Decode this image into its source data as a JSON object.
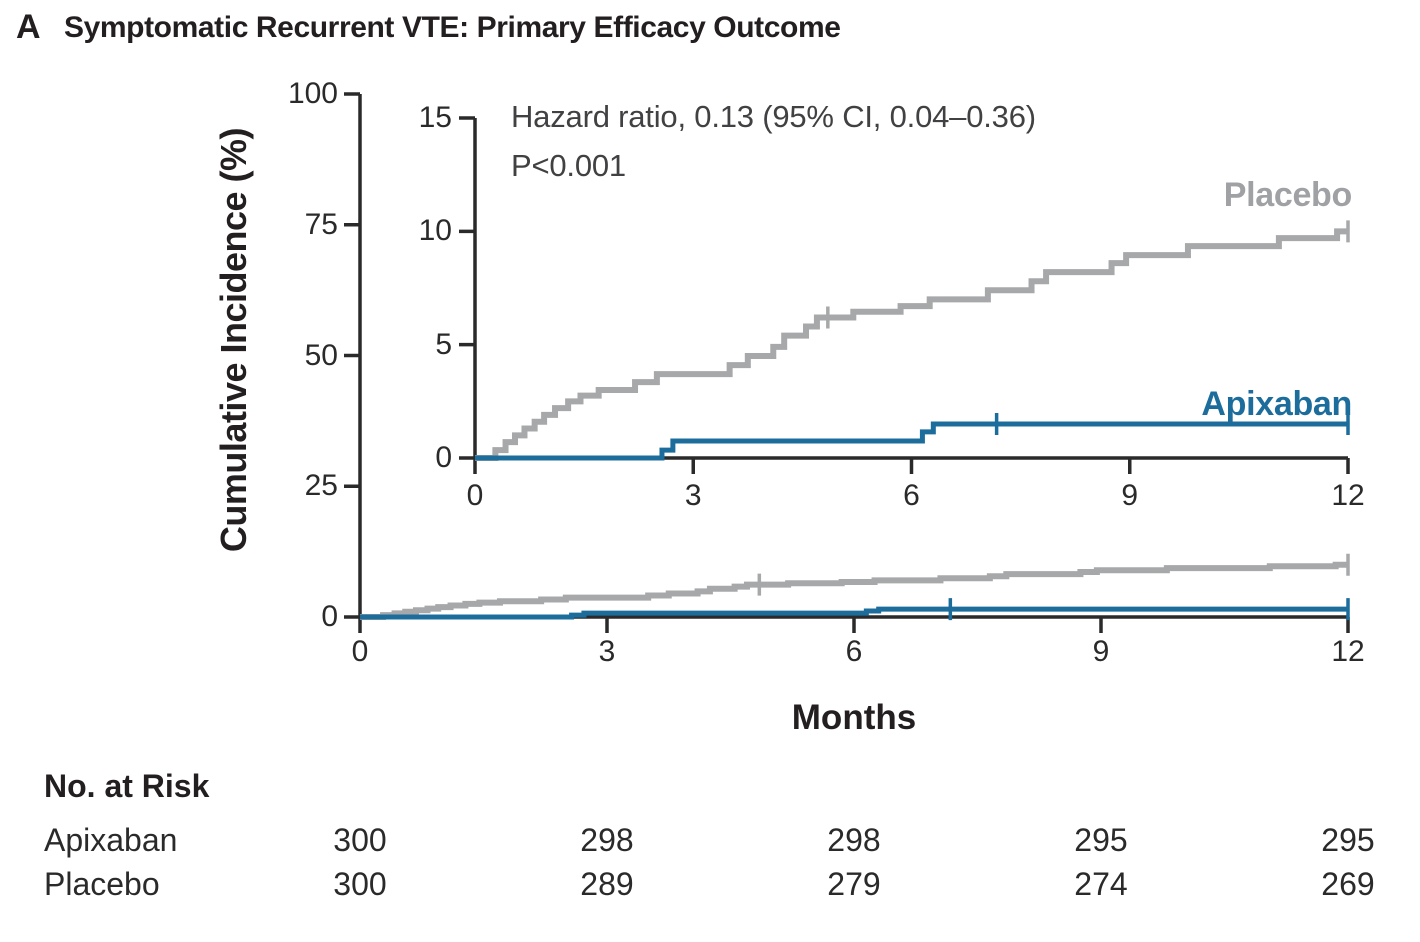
{
  "panel": {
    "letter": "A",
    "title": "Symptomatic Recurrent VTE: Primary Efficacy Outcome"
  },
  "chart_data": {
    "type": "line",
    "subtype": "kaplan-meier-cumulative-incidence-steps",
    "title": "Symptomatic Recurrent VTE: Primary Efficacy Outcome",
    "xlabel": "Months",
    "ylabel": "Cumulative Incidence (%)",
    "annotation": {
      "hazard_ratio": "Hazard ratio, 0.13 (95% CI, 0.04–0.36)",
      "p_value": "P<0.001"
    },
    "main_axis": {
      "xlim": [
        0,
        12
      ],
      "xticks": [
        0,
        3,
        6,
        9,
        12
      ],
      "ylim": [
        0,
        100
      ],
      "yticks": [
        0,
        25,
        50,
        75,
        100
      ]
    },
    "inset_axis": {
      "xlim": [
        0,
        12
      ],
      "xticks": [
        0,
        3,
        6,
        9,
        12
      ],
      "ylim": [
        0,
        15
      ],
      "yticks": [
        0,
        5,
        10,
        15
      ]
    },
    "axis_color": "#2b2a2b",
    "legend_position": "curve-end-labels",
    "grid": false,
    "series": [
      {
        "name": "Placebo",
        "color": "#a7a8aa",
        "label_color": "#9fa1a4",
        "final_value_pct": 10.0,
        "steps": [
          [
            0,
            0
          ],
          [
            0.28,
            0.35
          ],
          [
            0.42,
            0.7
          ],
          [
            0.55,
            1.0
          ],
          [
            0.68,
            1.3
          ],
          [
            0.82,
            1.6
          ],
          [
            0.95,
            1.9
          ],
          [
            1.1,
            2.2
          ],
          [
            1.28,
            2.5
          ],
          [
            1.45,
            2.75
          ],
          [
            1.7,
            3.0
          ],
          [
            2.2,
            3.35
          ],
          [
            2.5,
            3.7
          ],
          [
            3.5,
            4.1
          ],
          [
            3.75,
            4.5
          ],
          [
            4.1,
            4.9
          ],
          [
            4.25,
            5.4
          ],
          [
            4.55,
            5.8
          ],
          [
            4.7,
            6.2
          ],
          [
            5.2,
            6.45
          ],
          [
            5.85,
            6.7
          ],
          [
            6.25,
            7.0
          ],
          [
            7.05,
            7.4
          ],
          [
            7.65,
            7.8
          ],
          [
            7.85,
            8.2
          ],
          [
            8.75,
            8.6
          ],
          [
            8.95,
            8.95
          ],
          [
            9.8,
            9.35
          ],
          [
            11.05,
            9.7
          ],
          [
            11.85,
            10.0
          ]
        ],
        "end_month": 12,
        "censor_marks": [
          [
            4.85,
            6.2
          ],
          [
            12,
            10.0
          ]
        ]
      },
      {
        "name": "Apixaban",
        "color": "#1c6d9c",
        "label_color": "#1c6d9c",
        "final_value_pct": 1.5,
        "steps": [
          [
            0,
            0
          ],
          [
            2.57,
            0.35
          ],
          [
            2.72,
            0.75
          ],
          [
            6.15,
            1.15
          ],
          [
            6.3,
            1.5
          ]
        ],
        "end_month": 12,
        "censor_marks": [
          [
            7.17,
            1.5
          ],
          [
            12,
            1.5
          ]
        ]
      }
    ]
  },
  "risk_table": {
    "header": "No. at Risk",
    "months": [
      0,
      3,
      6,
      9,
      12
    ],
    "rows": [
      {
        "label": "Apixaban",
        "values": [
          "300",
          "298",
          "298",
          "295",
          "295"
        ]
      },
      {
        "label": "Placebo",
        "values": [
          "300",
          "289",
          "279",
          "274",
          "269"
        ]
      }
    ]
  }
}
